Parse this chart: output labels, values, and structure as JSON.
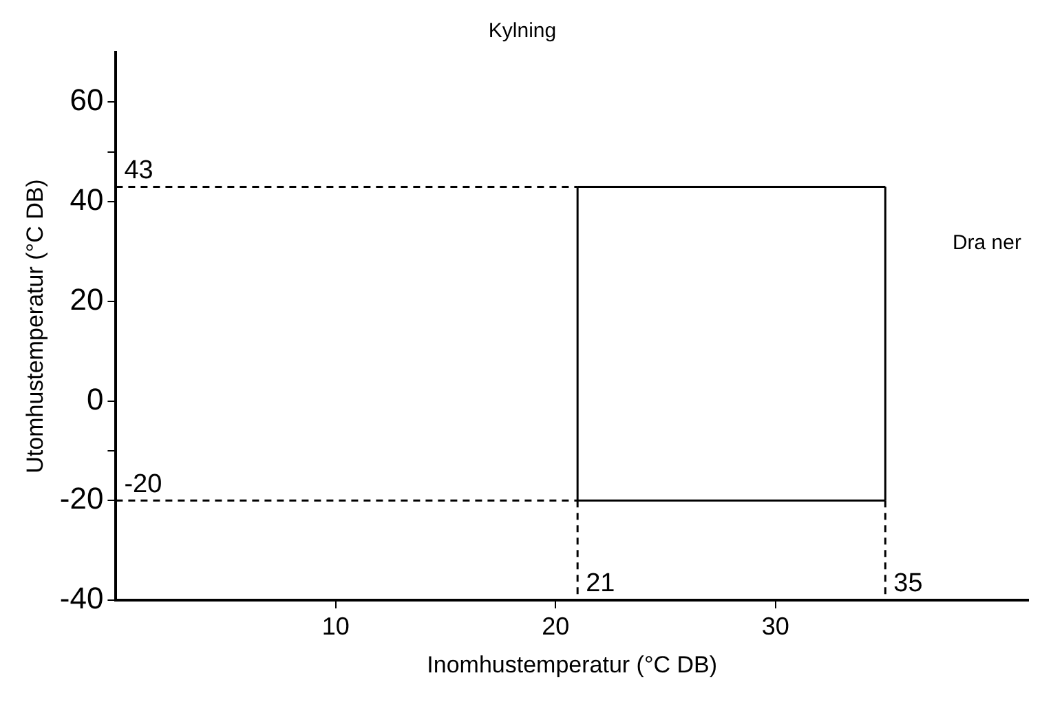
{
  "chart_data": {
    "type": "line",
    "title": "Kylning",
    "xlabel": "Inomhustemperatur (°C DB)",
    "ylabel": "Utomhustemperatur (°C DB)",
    "xlim": [
      0,
      41.5
    ],
    "xticks": [
      10,
      20,
      30
    ],
    "ylim": [
      -40,
      70
    ],
    "yticks": [
      -40,
      -20,
      {
        "value": -10,
        "label": null
      },
      0,
      20,
      40,
      {
        "value": 50,
        "label": null
      },
      60
    ],
    "grid": false,
    "legend": false,
    "marker": "none",
    "series": [
      {
        "x": [
          21,
          35
        ],
        "values": [
          -20,
          -20
        ],
        "color": "#000000",
        "line_style": "solid"
      },
      {
        "x": [
          21,
          35
        ],
        "values": [
          43,
          43
        ],
        "color": "#000000",
        "line_style": "solid"
      },
      {
        "x": [
          21,
          21
        ],
        "values": [
          -20,
          43
        ],
        "color": "#000000",
        "line_style": "solid"
      },
      {
        "x": [
          35,
          35
        ],
        "values": [
          -20,
          43
        ],
        "color": "#000000",
        "line_style": "solid"
      },
      {
        "x": [
          0,
          21
        ],
        "values": [
          43,
          43
        ],
        "color": "#000000",
        "line_style": "dashed"
      },
      {
        "x": [
          0,
          21
        ],
        "values": [
          -20,
          -20
        ],
        "color": "#000000",
        "line_style": "dashed"
      },
      {
        "x": [
          21,
          21
        ],
        "values": [
          -20,
          -40
        ],
        "color": "#000000",
        "line_style": "dashed"
      },
      {
        "x": [
          35,
          35
        ],
        "values": [
          -20,
          -40
        ],
        "color": "#000000",
        "line_style": "dashed"
      }
    ],
    "annotations": [
      {
        "text": "43",
        "x": 0,
        "y": 43
      },
      {
        "text": "-20",
        "x": 0,
        "y": -20
      },
      {
        "text": "21",
        "x": 21,
        "y": -40
      },
      {
        "text": "35",
        "x": 35,
        "y": -40
      },
      "Dra ner"
    ]
  }
}
